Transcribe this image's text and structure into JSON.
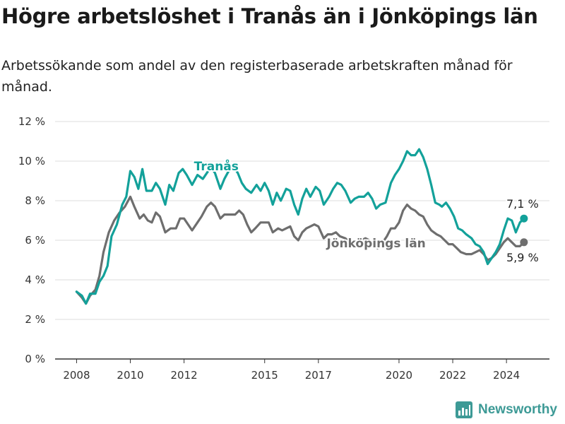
{
  "header": {
    "title": "Högre arbetslöshet i Tranås än i Jönköpings län",
    "subtitle": "Arbetssökande som andel av den registerbaserade arbetskraften månad för månad."
  },
  "brand": {
    "name": "Newsworthy",
    "icon": "bar-chart-logo-icon",
    "color": "#3d9a96"
  },
  "chart_data": {
    "type": "line",
    "ylim": [
      0,
      12
    ],
    "y_ticks": [
      0,
      2,
      4,
      6,
      8,
      10,
      12
    ],
    "y_tick_labels": [
      "0 %",
      "2 %",
      "4 %",
      "6 %",
      "8 %",
      "10 %",
      "12 %"
    ],
    "x_ticks": [
      2008,
      2010,
      2012,
      2015,
      2017,
      2020,
      2022,
      2024
    ],
    "x_tick_labels": [
      "2008",
      "2010",
      "2012",
      "2015",
      "2017",
      "2020",
      "2022",
      "2024"
    ],
    "xlim": [
      2007.2,
      2025.6
    ],
    "grid": true,
    "series": [
      {
        "name": "Tranås",
        "color": "#13a19a",
        "end_label": "7,1 %",
        "points": [
          [
            2008.0,
            3.4
          ],
          [
            2008.2,
            3.2
          ],
          [
            2008.35,
            2.8
          ],
          [
            2008.5,
            3.3
          ],
          [
            2008.7,
            3.3
          ],
          [
            2008.85,
            3.9
          ],
          [
            2009.0,
            4.2
          ],
          [
            2009.15,
            4.7
          ],
          [
            2009.3,
            6.2
          ],
          [
            2009.5,
            6.8
          ],
          [
            2009.7,
            7.8
          ],
          [
            2009.85,
            8.2
          ],
          [
            2010.0,
            9.5
          ],
          [
            2010.15,
            9.2
          ],
          [
            2010.3,
            8.6
          ],
          [
            2010.45,
            9.6
          ],
          [
            2010.6,
            8.5
          ],
          [
            2010.8,
            8.5
          ],
          [
            2010.95,
            8.9
          ],
          [
            2011.1,
            8.6
          ],
          [
            2011.3,
            7.8
          ],
          [
            2011.45,
            8.8
          ],
          [
            2011.6,
            8.5
          ],
          [
            2011.8,
            9.4
          ],
          [
            2011.95,
            9.6
          ],
          [
            2012.1,
            9.3
          ],
          [
            2012.3,
            8.8
          ],
          [
            2012.5,
            9.3
          ],
          [
            2012.7,
            9.1
          ],
          [
            2012.85,
            9.4
          ],
          [
            2013.0,
            9.7
          ],
          [
            2013.15,
            9.4
          ],
          [
            2013.35,
            8.6
          ],
          [
            2013.5,
            9.1
          ],
          [
            2013.7,
            9.6
          ],
          [
            2013.9,
            9.6
          ],
          [
            2014.0,
            9.4
          ],
          [
            2014.15,
            8.9
          ],
          [
            2014.3,
            8.6
          ],
          [
            2014.5,
            8.4
          ],
          [
            2014.7,
            8.8
          ],
          [
            2014.85,
            8.5
          ],
          [
            2015.0,
            8.9
          ],
          [
            2015.15,
            8.5
          ],
          [
            2015.3,
            7.8
          ],
          [
            2015.45,
            8.4
          ],
          [
            2015.6,
            8.0
          ],
          [
            2015.8,
            8.6
          ],
          [
            2015.95,
            8.5
          ],
          [
            2016.1,
            7.8
          ],
          [
            2016.25,
            7.3
          ],
          [
            2016.4,
            8.1
          ],
          [
            2016.55,
            8.6
          ],
          [
            2016.7,
            8.2
          ],
          [
            2016.9,
            8.7
          ],
          [
            2017.05,
            8.5
          ],
          [
            2017.2,
            7.8
          ],
          [
            2017.4,
            8.2
          ],
          [
            2017.55,
            8.6
          ],
          [
            2017.7,
            8.9
          ],
          [
            2017.85,
            8.8
          ],
          [
            2018.0,
            8.5
          ],
          [
            2018.2,
            7.9
          ],
          [
            2018.35,
            8.1
          ],
          [
            2018.5,
            8.2
          ],
          [
            2018.7,
            8.2
          ],
          [
            2018.85,
            8.4
          ],
          [
            2019.0,
            8.1
          ],
          [
            2019.15,
            7.6
          ],
          [
            2019.3,
            7.8
          ],
          [
            2019.5,
            7.9
          ],
          [
            2019.7,
            8.9
          ],
          [
            2019.85,
            9.3
          ],
          [
            2020.0,
            9.6
          ],
          [
            2020.15,
            10.0
          ],
          [
            2020.3,
            10.5
          ],
          [
            2020.45,
            10.3
          ],
          [
            2020.6,
            10.3
          ],
          [
            2020.75,
            10.6
          ],
          [
            2020.9,
            10.2
          ],
          [
            2021.05,
            9.6
          ],
          [
            2021.2,
            8.8
          ],
          [
            2021.35,
            7.9
          ],
          [
            2021.5,
            7.8
          ],
          [
            2021.6,
            7.7
          ],
          [
            2021.75,
            7.9
          ],
          [
            2021.9,
            7.6
          ],
          [
            2022.05,
            7.2
          ],
          [
            2022.2,
            6.6
          ],
          [
            2022.35,
            6.5
          ],
          [
            2022.5,
            6.3
          ],
          [
            2022.7,
            6.1
          ],
          [
            2022.85,
            5.8
          ],
          [
            2023.0,
            5.7
          ],
          [
            2023.15,
            5.4
          ],
          [
            2023.3,
            4.8
          ],
          [
            2023.45,
            5.1
          ],
          [
            2023.6,
            5.4
          ],
          [
            2023.75,
            5.8
          ],
          [
            2023.9,
            6.5
          ],
          [
            2024.05,
            7.1
          ],
          [
            2024.2,
            7.0
          ],
          [
            2024.35,
            6.4
          ],
          [
            2024.5,
            6.9
          ],
          [
            2024.65,
            7.1
          ]
        ]
      },
      {
        "name": "Jönköpings län",
        "color": "#6e6e6e",
        "end_label": "5,9 %",
        "points": [
          [
            2008.0,
            3.4
          ],
          [
            2008.2,
            3.1
          ],
          [
            2008.35,
            2.8
          ],
          [
            2008.5,
            3.2
          ],
          [
            2008.7,
            3.5
          ],
          [
            2008.85,
            4.2
          ],
          [
            2009.0,
            5.4
          ],
          [
            2009.2,
            6.4
          ],
          [
            2009.4,
            7.0
          ],
          [
            2009.6,
            7.4
          ],
          [
            2009.8,
            7.7
          ],
          [
            2010.0,
            8.2
          ],
          [
            2010.15,
            7.7
          ],
          [
            2010.35,
            7.1
          ],
          [
            2010.5,
            7.3
          ],
          [
            2010.65,
            7.0
          ],
          [
            2010.8,
            6.9
          ],
          [
            2010.95,
            7.4
          ],
          [
            2011.1,
            7.2
          ],
          [
            2011.3,
            6.4
          ],
          [
            2011.5,
            6.6
          ],
          [
            2011.7,
            6.6
          ],
          [
            2011.85,
            7.1
          ],
          [
            2012.0,
            7.1
          ],
          [
            2012.15,
            6.8
          ],
          [
            2012.3,
            6.5
          ],
          [
            2012.5,
            6.9
          ],
          [
            2012.65,
            7.2
          ],
          [
            2012.85,
            7.7
          ],
          [
            2013.0,
            7.9
          ],
          [
            2013.15,
            7.7
          ],
          [
            2013.35,
            7.1
          ],
          [
            2013.5,
            7.3
          ],
          [
            2013.7,
            7.3
          ],
          [
            2013.9,
            7.3
          ],
          [
            2014.05,
            7.5
          ],
          [
            2014.2,
            7.3
          ],
          [
            2014.35,
            6.8
          ],
          [
            2014.5,
            6.4
          ],
          [
            2014.65,
            6.6
          ],
          [
            2014.85,
            6.9
          ],
          [
            2015.0,
            6.9
          ],
          [
            2015.15,
            6.9
          ],
          [
            2015.3,
            6.4
          ],
          [
            2015.5,
            6.6
          ],
          [
            2015.65,
            6.5
          ],
          [
            2015.8,
            6.6
          ],
          [
            2015.95,
            6.7
          ],
          [
            2016.1,
            6.2
          ],
          [
            2016.25,
            6.0
          ],
          [
            2016.4,
            6.4
          ],
          [
            2016.55,
            6.6
          ],
          [
            2016.7,
            6.7
          ],
          [
            2016.85,
            6.8
          ],
          [
            2017.0,
            6.7
          ],
          [
            2017.2,
            6.1
          ],
          [
            2017.35,
            6.3
          ],
          [
            2017.5,
            6.3
          ],
          [
            2017.65,
            6.4
          ],
          [
            2017.8,
            6.2
          ],
          [
            2018.0,
            6.1
          ],
          [
            2018.15,
            5.9
          ],
          [
            2018.3,
            5.8
          ],
          [
            2018.45,
            6.0
          ],
          [
            2018.6,
            6.0
          ],
          [
            2018.75,
            6.1
          ],
          [
            2018.9,
            6.0
          ],
          [
            2019.05,
            5.8
          ],
          [
            2019.2,
            5.6
          ],
          [
            2019.4,
            5.9
          ],
          [
            2019.55,
            6.2
          ],
          [
            2019.7,
            6.6
          ],
          [
            2019.85,
            6.6
          ],
          [
            2020.0,
            6.9
          ],
          [
            2020.15,
            7.5
          ],
          [
            2020.3,
            7.8
          ],
          [
            2020.45,
            7.6
          ],
          [
            2020.6,
            7.5
          ],
          [
            2020.75,
            7.3
          ],
          [
            2020.9,
            7.2
          ],
          [
            2021.05,
            6.8
          ],
          [
            2021.2,
            6.5
          ],
          [
            2021.4,
            6.3
          ],
          [
            2021.55,
            6.2
          ],
          [
            2021.7,
            6.0
          ],
          [
            2021.85,
            5.8
          ],
          [
            2022.0,
            5.8
          ],
          [
            2022.15,
            5.6
          ],
          [
            2022.3,
            5.4
          ],
          [
            2022.5,
            5.3
          ],
          [
            2022.7,
            5.3
          ],
          [
            2022.85,
            5.4
          ],
          [
            2023.0,
            5.5
          ],
          [
            2023.15,
            5.3
          ],
          [
            2023.3,
            5.0
          ],
          [
            2023.45,
            5.1
          ],
          [
            2023.6,
            5.3
          ],
          [
            2023.75,
            5.6
          ],
          [
            2023.9,
            5.9
          ],
          [
            2024.05,
            6.1
          ],
          [
            2024.2,
            5.9
          ],
          [
            2024.35,
            5.7
          ],
          [
            2024.5,
            5.7
          ],
          [
            2024.65,
            5.9
          ]
        ]
      }
    ]
  }
}
